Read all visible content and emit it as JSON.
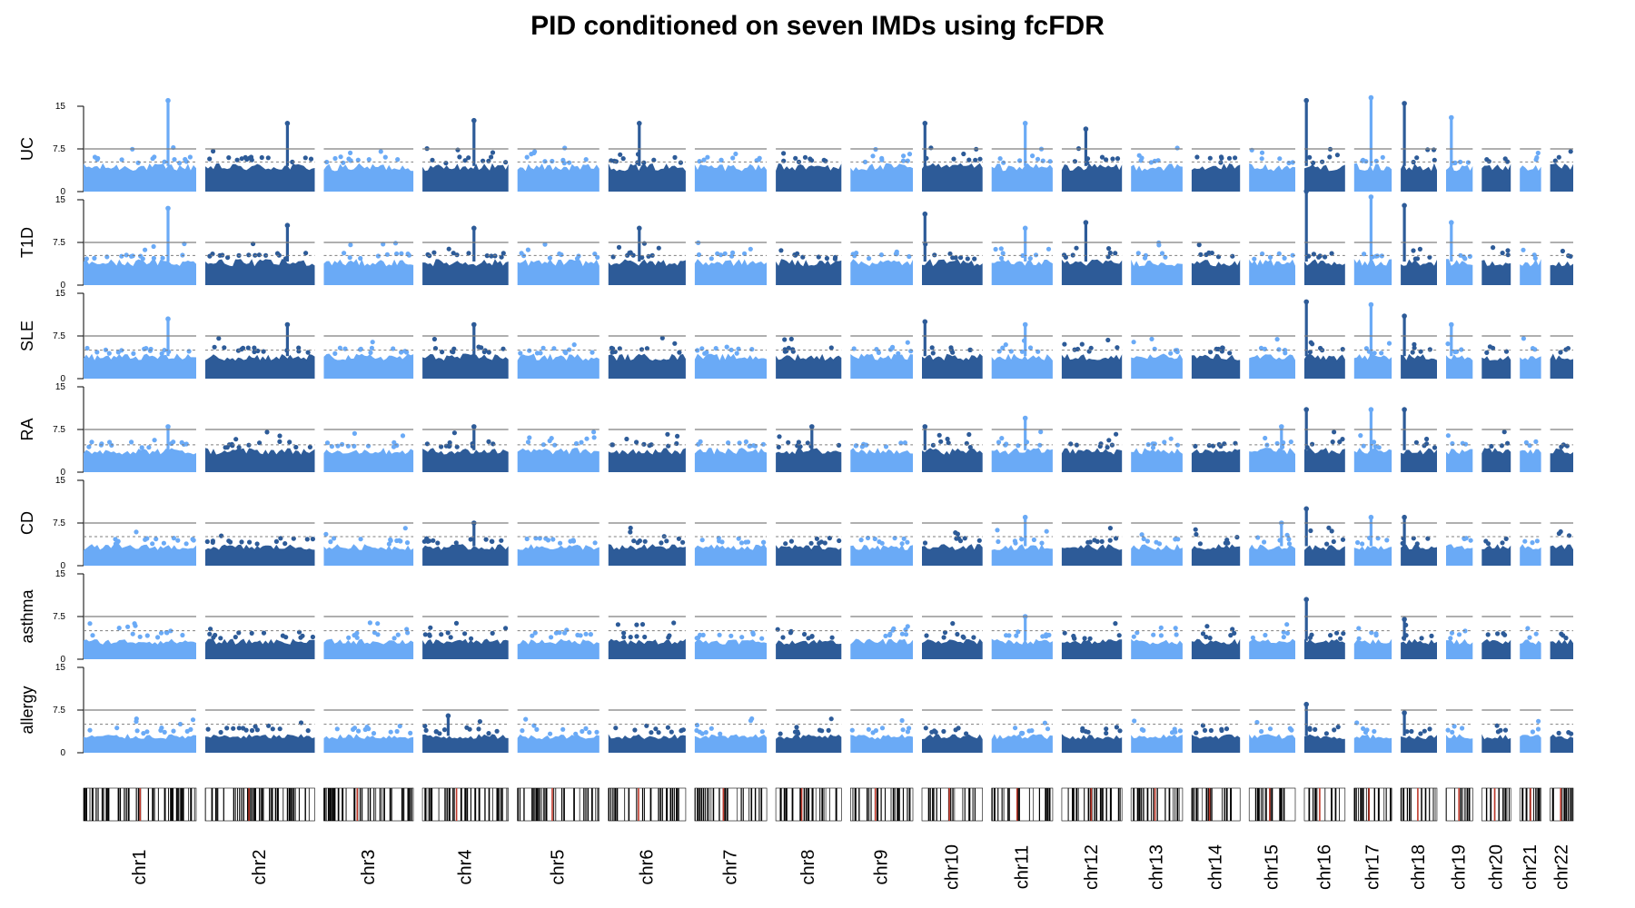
{
  "title": "PID conditioned on seven IMDs using fcFDR",
  "colors": {
    "light": "#6aaaf6",
    "dark": "#2d5b98",
    "line": "#7f7f7f",
    "ideogram_band": "#000000",
    "centromere": "#c0392b"
  },
  "chart_data": {
    "type": "scatter",
    "title": "PID conditioned on seven IMDs using fcFDR",
    "xlabel": "",
    "ylabel": "",
    "ylim": [
      0,
      15
    ],
    "yticks": [
      "0",
      "7.5",
      "15"
    ],
    "tracks": [
      "UC",
      "T1D",
      "SLE",
      "RA",
      "CD",
      "asthma",
      "allergy"
    ],
    "chromosomes": [
      "chr1",
      "chr2",
      "chr3",
      "chr4",
      "chr5",
      "chr6",
      "chr7",
      "chr8",
      "chr9",
      "chr10",
      "chr11",
      "chr12",
      "chr13",
      "chr14",
      "chr15",
      "chr16",
      "chr17",
      "chr18",
      "chr19",
      "chr20",
      "chr21",
      "chr22"
    ],
    "chromosome_sizes_mb": [
      249,
      242,
      198,
      190,
      181,
      171,
      159,
      145,
      138,
      134,
      135,
      133,
      114,
      107,
      102,
      90,
      83,
      80,
      59,
      64,
      47,
      51
    ],
    "reference_lines": {
      "solid": [
        7.5,
        7.5,
        7.5,
        7.5,
        7.5,
        7.5,
        7.5
      ],
      "dashed": [
        5.2,
        5.2,
        5.0,
        4.8,
        5.1,
        5.0,
        5.0
      ]
    },
    "baseline_max": [
      5.0,
      4.6,
      4.4,
      4.3,
      3.8,
      3.6,
      3.3
    ],
    "peaks": [
      [
        {
          "chr": 1,
          "pos": 0.75,
          "value": 16
        },
        {
          "chr": 2,
          "pos": 0.75,
          "value": 12
        },
        {
          "chr": 4,
          "pos": 0.6,
          "value": 12.5
        },
        {
          "chr": 6,
          "pos": 0.4,
          "value": 12
        },
        {
          "chr": 10,
          "pos": 0.05,
          "value": 12
        },
        {
          "chr": 11,
          "pos": 0.55,
          "value": 12
        },
        {
          "chr": 12,
          "pos": 0.4,
          "value": 11
        },
        {
          "chr": 16,
          "pos": 0.05,
          "value": 16
        },
        {
          "chr": 17,
          "pos": 0.45,
          "value": 16.5
        },
        {
          "chr": 18,
          "pos": 0.1,
          "value": 15.5
        },
        {
          "chr": 19,
          "pos": 0.2,
          "value": 13
        }
      ],
      [
        {
          "chr": 1,
          "pos": 0.75,
          "value": 13.5
        },
        {
          "chr": 2,
          "pos": 0.75,
          "value": 10.5
        },
        {
          "chr": 4,
          "pos": 0.6,
          "value": 10
        },
        {
          "chr": 6,
          "pos": 0.4,
          "value": 10
        },
        {
          "chr": 10,
          "pos": 0.05,
          "value": 12.5
        },
        {
          "chr": 11,
          "pos": 0.55,
          "value": 10
        },
        {
          "chr": 12,
          "pos": 0.4,
          "value": 11
        },
        {
          "chr": 16,
          "pos": 0.05,
          "value": 16.5
        },
        {
          "chr": 17,
          "pos": 0.45,
          "value": 15.5
        },
        {
          "chr": 18,
          "pos": 0.1,
          "value": 14
        },
        {
          "chr": 19,
          "pos": 0.2,
          "value": 11
        }
      ],
      [
        {
          "chr": 1,
          "pos": 0.75,
          "value": 10.5
        },
        {
          "chr": 2,
          "pos": 0.75,
          "value": 9.5
        },
        {
          "chr": 4,
          "pos": 0.6,
          "value": 9.5
        },
        {
          "chr": 10,
          "pos": 0.05,
          "value": 10
        },
        {
          "chr": 11,
          "pos": 0.55,
          "value": 9.5
        },
        {
          "chr": 16,
          "pos": 0.05,
          "value": 13.5
        },
        {
          "chr": 17,
          "pos": 0.45,
          "value": 13
        },
        {
          "chr": 18,
          "pos": 0.1,
          "value": 11
        },
        {
          "chr": 19,
          "pos": 0.2,
          "value": 9.5
        }
      ],
      [
        {
          "chr": 1,
          "pos": 0.75,
          "value": 8
        },
        {
          "chr": 4,
          "pos": 0.6,
          "value": 8
        },
        {
          "chr": 8,
          "pos": 0.55,
          "value": 8
        },
        {
          "chr": 10,
          "pos": 0.05,
          "value": 8
        },
        {
          "chr": 11,
          "pos": 0.55,
          "value": 9.5
        },
        {
          "chr": 15,
          "pos": 0.7,
          "value": 8
        },
        {
          "chr": 16,
          "pos": 0.05,
          "value": 11
        },
        {
          "chr": 17,
          "pos": 0.45,
          "value": 11
        },
        {
          "chr": 18,
          "pos": 0.1,
          "value": 11
        }
      ],
      [
        {
          "chr": 4,
          "pos": 0.6,
          "value": 7.5
        },
        {
          "chr": 11,
          "pos": 0.55,
          "value": 8.5
        },
        {
          "chr": 15,
          "pos": 0.7,
          "value": 7.5
        },
        {
          "chr": 16,
          "pos": 0.05,
          "value": 10
        },
        {
          "chr": 17,
          "pos": 0.45,
          "value": 8.5
        },
        {
          "chr": 18,
          "pos": 0.1,
          "value": 8.5
        }
      ],
      [
        {
          "chr": 16,
          "pos": 0.05,
          "value": 10.5
        },
        {
          "chr": 11,
          "pos": 0.55,
          "value": 7.5
        },
        {
          "chr": 18,
          "pos": 0.1,
          "value": 7
        }
      ],
      [
        {
          "chr": 16,
          "pos": 0.05,
          "value": 8.5
        },
        {
          "chr": 4,
          "pos": 0.3,
          "value": 6.5
        },
        {
          "chr": 18,
          "pos": 0.1,
          "value": 7
        }
      ]
    ]
  }
}
